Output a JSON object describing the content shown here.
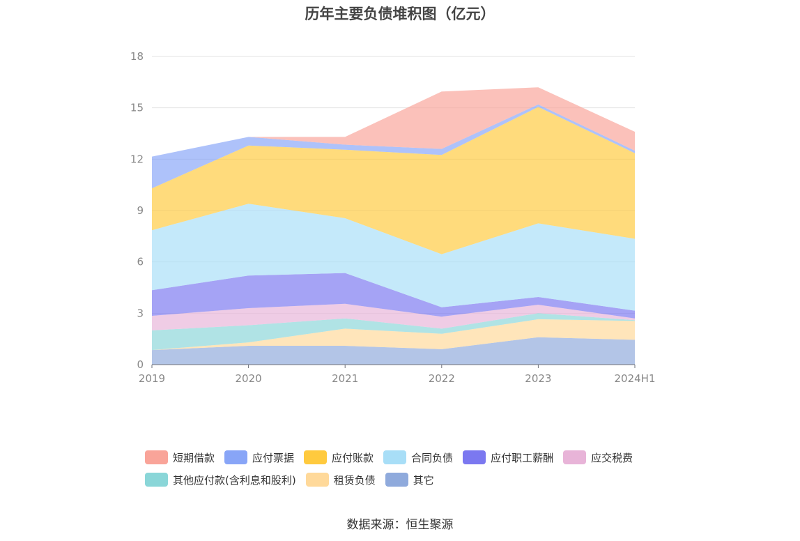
{
  "chart_data": {
    "type": "area",
    "stacked": true,
    "title": "历年主要负债堆积图（亿元）",
    "x": [
      "2019",
      "2020",
      "2021",
      "2022",
      "2023",
      "2024H1"
    ],
    "ylim": [
      0,
      18
    ],
    "yticks": [
      0,
      3,
      6,
      9,
      12,
      15,
      18
    ],
    "grid": true,
    "legend_position": "bottom",
    "series": [
      {
        "name": "其它",
        "color": "#8FAADC",
        "values": [
          0.85,
          1.1,
          1.1,
          0.9,
          1.6,
          1.45
        ]
      },
      {
        "name": "租赁负债",
        "color": "#FFD99A",
        "values": [
          0.0,
          0.2,
          1.0,
          0.9,
          1.05,
          1.1
        ]
      },
      {
        "name": "其他应付款(含利息和股利)",
        "color": "#8AD6D8",
        "values": [
          1.15,
          1.0,
          0.6,
          0.3,
          0.35,
          0.05
        ]
      },
      {
        "name": "应交税费",
        "color": "#E8B4D8",
        "values": [
          0.85,
          1.0,
          0.85,
          0.7,
          0.5,
          0.1
        ]
      },
      {
        "name": "应付职工薪酬",
        "color": "#7B78F0",
        "values": [
          1.5,
          1.9,
          1.8,
          0.55,
          0.45,
          0.45
        ]
      },
      {
        "name": "合同负债",
        "color": "#A8DEF7",
        "values": [
          3.5,
          4.2,
          3.2,
          3.1,
          4.3,
          4.2
        ]
      },
      {
        "name": "应付账款",
        "color": "#FFCA3E",
        "values": [
          2.45,
          3.4,
          4.0,
          5.8,
          6.8,
          5.0
        ]
      },
      {
        "name": "应付票据",
        "color": "#88A5F7",
        "values": [
          1.85,
          0.5,
          0.3,
          0.35,
          0.15,
          0.15
        ]
      },
      {
        "name": "短期借款",
        "color": "#F9A499",
        "values": [
          0.0,
          0.0,
          0.45,
          3.35,
          1.0,
          1.1
        ]
      }
    ],
    "legend_order": [
      "短期借款",
      "应付票据",
      "应付账款",
      "合同负债",
      "应付职工薪酬",
      "应交税费",
      "其他应付款(含利息和股利)",
      "租赁负债",
      "其它"
    ]
  },
  "legend_display": [
    [
      "短期借款",
      "应付票据",
      "应付账款",
      "合同负债",
      "应付职工薪酬",
      "应交税费"
    ],
    [
      "其他应付款(含利息和股利)",
      "租赁负债",
      "其它"
    ]
  ],
  "source": "数据来源：恒生聚源"
}
